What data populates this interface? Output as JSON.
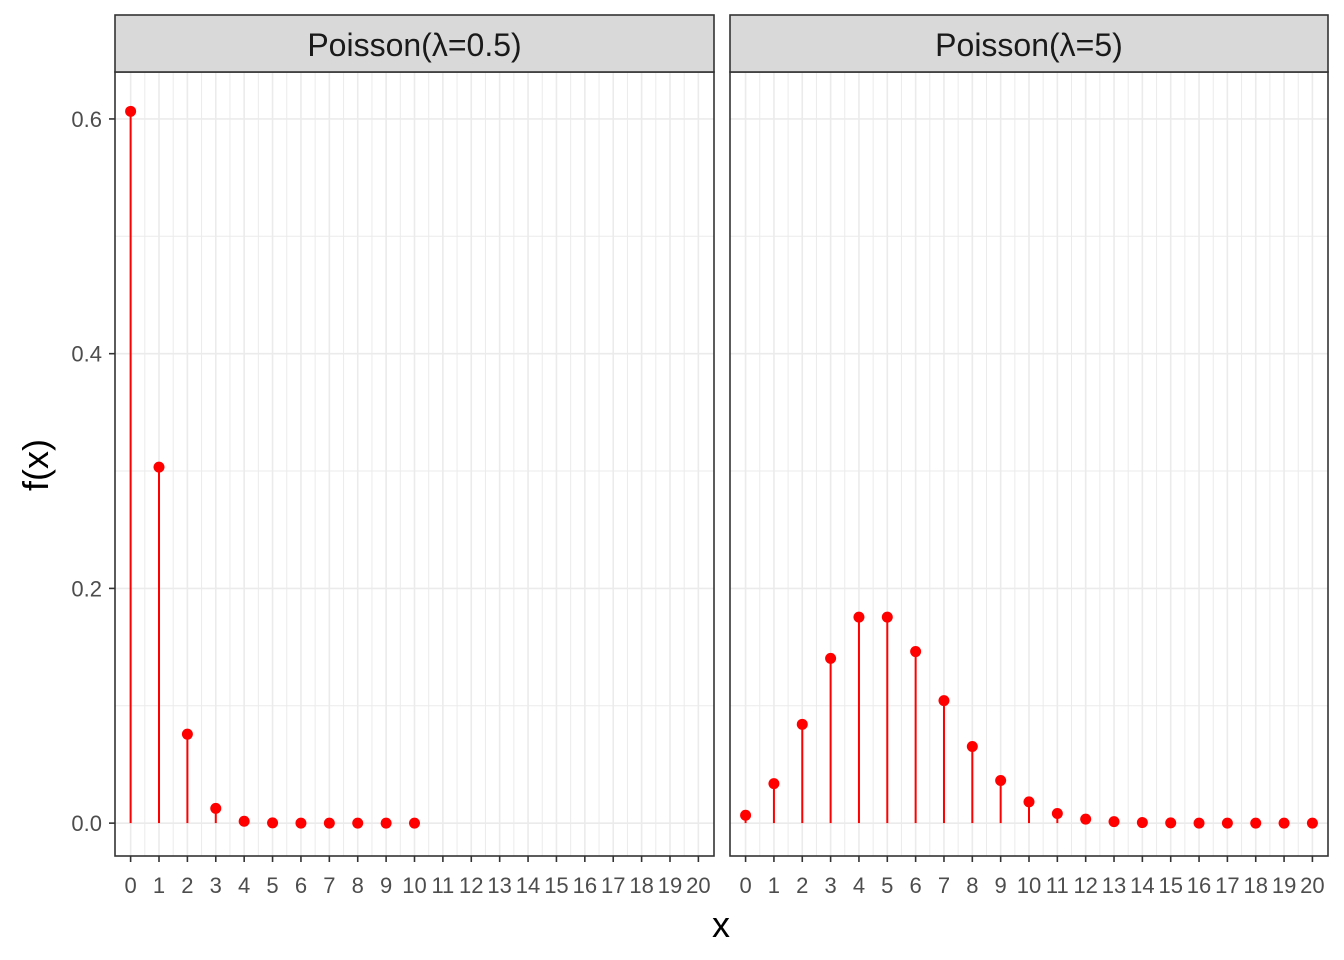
{
  "chart_data": {
    "type": "lollipop",
    "xlabel": "x",
    "ylabel": "f(x)",
    "ylim": [
      -0.028,
      0.64
    ],
    "xlim": [
      -0.55,
      20.55
    ],
    "y_ticks": [
      0.0,
      0.2,
      0.4,
      0.6
    ],
    "y_tick_labels": [
      "0.0",
      "0.2",
      "0.4",
      "0.6"
    ],
    "x_ticks": [
      0,
      1,
      2,
      3,
      4,
      5,
      6,
      7,
      8,
      9,
      10,
      11,
      12,
      13,
      14,
      15,
      16,
      17,
      18,
      19,
      20
    ],
    "x_tick_labels": [
      "0",
      "1",
      "2",
      "3",
      "4",
      "5",
      "6",
      "7",
      "8",
      "9",
      "10",
      "11",
      "12",
      "13",
      "14",
      "15",
      "16",
      "17",
      "18",
      "19",
      "20"
    ],
    "grid": true,
    "color": "#ff0000",
    "panels": [
      {
        "title": "Poisson(λ=0.5)",
        "x": [
          0,
          1,
          2,
          3,
          4,
          5,
          6,
          7,
          8,
          9,
          10
        ],
        "values": [
          0.6065,
          0.3033,
          0.0758,
          0.0126,
          0.0016,
          0.0002,
          0.0,
          0.0,
          0.0,
          0.0,
          0.0
        ]
      },
      {
        "title": "Poisson(λ=5)",
        "x": [
          0,
          1,
          2,
          3,
          4,
          5,
          6,
          7,
          8,
          9,
          10,
          11,
          12,
          13,
          14,
          15,
          16,
          17,
          18,
          19,
          20
        ],
        "values": [
          0.0067,
          0.0337,
          0.0842,
          0.1404,
          0.1755,
          0.1755,
          0.1462,
          0.1044,
          0.0653,
          0.0363,
          0.0181,
          0.0082,
          0.0034,
          0.0013,
          0.0005,
          0.0002,
          0.0,
          0.0,
          0.0,
          0.0,
          0.0
        ]
      }
    ]
  }
}
